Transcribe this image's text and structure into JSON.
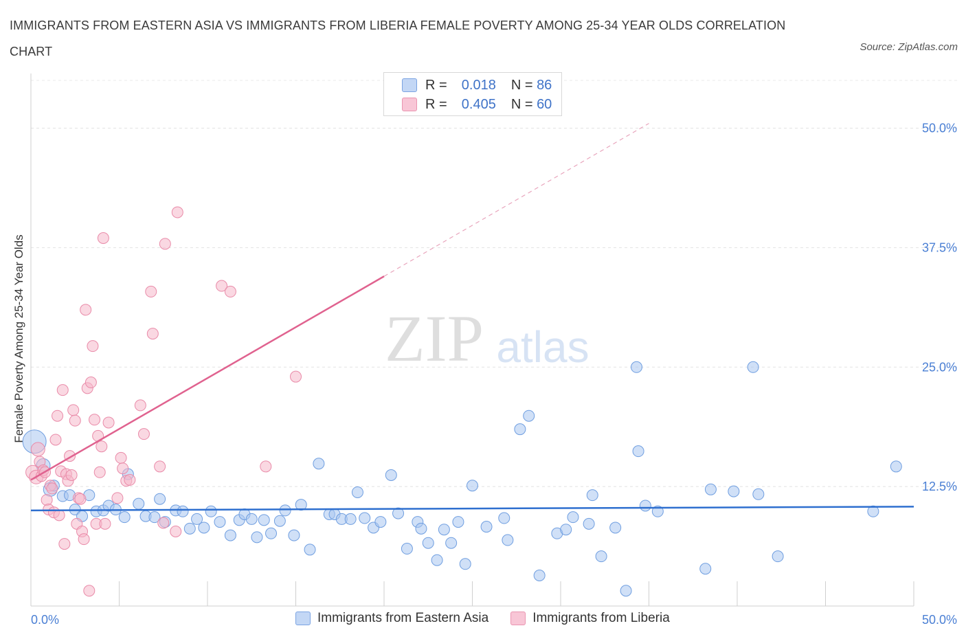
{
  "title": "IMMIGRANTS FROM EASTERN ASIA VS IMMIGRANTS FROM LIBERIA FEMALE POVERTY AMONG 25-34 YEAR OLDS CORRELATION CHART",
  "source": "Source: ZipAtlas.com",
  "watermark": {
    "zip": "ZIP",
    "atlas": "atlas"
  },
  "colors": {
    "blue_fill": "#a9c6f0",
    "blue_stroke": "#6f9ee0",
    "blue_line": "#2e6fcf",
    "pink_fill": "#f5b8cb",
    "pink_stroke": "#e98aa8",
    "pink_line": "#e0628f",
    "tick_text": "#4a7fd4"
  },
  "legend": {
    "rows": [
      {
        "r_label": "R =",
        "r_value": "0.018",
        "n_label": "N =",
        "n_value": "86"
      },
      {
        "r_label": "R =",
        "r_value": "0.405",
        "n_label": "N =",
        "n_value": "60"
      }
    ]
  },
  "chart_data": {
    "type": "scatter",
    "title": "IMMIGRANTS FROM EASTERN ASIA VS IMMIGRANTS FROM LIBERIA FEMALE POVERTY AMONG 25-34 YEAR OLDS CORRELATION CHART",
    "xlabel": "",
    "ylabel": "Female Poverty Among 25-34 Year Olds",
    "xlim": [
      0,
      50
    ],
    "ylim": [
      0,
      55
    ],
    "x_tick_labels": [
      "0.0%",
      "50.0%"
    ],
    "y_ticks": [
      12.5,
      25.0,
      37.5,
      50.0
    ],
    "y_tick_labels": [
      "12.5%",
      "25.0%",
      "37.5%",
      "50.0%"
    ],
    "grid": true,
    "legend_position": "top-center",
    "series": [
      {
        "name": "Immigrants from Eastern Asia",
        "r": 0.018,
        "n": 86,
        "trend": {
          "x1": 0,
          "y1": 10.0,
          "x2": 50,
          "y2": 10.4
        },
        "points": [
          [
            0.2,
            17.2
          ],
          [
            0.7,
            14.7
          ],
          [
            1.1,
            12.2
          ],
          [
            1.3,
            12.6
          ],
          [
            1.8,
            11.5
          ],
          [
            2.2,
            11.6
          ],
          [
            2.5,
            10.1
          ],
          [
            2.9,
            9.4
          ],
          [
            3.3,
            11.6
          ],
          [
            3.7,
            9.9
          ],
          [
            4.1,
            10.0
          ],
          [
            4.4,
            10.5
          ],
          [
            4.8,
            10.1
          ],
          [
            5.3,
            9.3
          ],
          [
            5.5,
            13.8
          ],
          [
            6.1,
            10.7
          ],
          [
            6.5,
            9.4
          ],
          [
            7.0,
            9.3
          ],
          [
            7.3,
            11.2
          ],
          [
            7.6,
            8.8
          ],
          [
            8.2,
            10.0
          ],
          [
            8.6,
            9.9
          ],
          [
            9.0,
            8.1
          ],
          [
            9.4,
            9.1
          ],
          [
            9.8,
            8.2
          ],
          [
            10.2,
            9.9
          ],
          [
            10.7,
            8.8
          ],
          [
            11.3,
            7.4
          ],
          [
            11.8,
            9.0
          ],
          [
            12.1,
            9.6
          ],
          [
            12.5,
            9.1
          ],
          [
            12.8,
            7.2
          ],
          [
            13.2,
            9.0
          ],
          [
            13.6,
            7.6
          ],
          [
            14.1,
            8.9
          ],
          [
            14.4,
            10.0
          ],
          [
            14.9,
            7.4
          ],
          [
            15.3,
            10.6
          ],
          [
            15.8,
            5.9
          ],
          [
            16.3,
            14.9
          ],
          [
            16.9,
            9.6
          ],
          [
            17.2,
            9.6
          ],
          [
            17.6,
            9.1
          ],
          [
            18.1,
            9.1
          ],
          [
            18.5,
            11.9
          ],
          [
            18.9,
            9.2
          ],
          [
            19.4,
            8.2
          ],
          [
            19.8,
            8.8
          ],
          [
            20.4,
            13.7
          ],
          [
            20.8,
            9.7
          ],
          [
            21.3,
            6.0
          ],
          [
            21.9,
            8.8
          ],
          [
            22.1,
            8.1
          ],
          [
            22.5,
            6.6
          ],
          [
            23.0,
            4.8
          ],
          [
            23.4,
            8.0
          ],
          [
            23.8,
            6.6
          ],
          [
            24.2,
            8.8
          ],
          [
            24.6,
            4.4
          ],
          [
            25.0,
            12.6
          ],
          [
            25.8,
            8.3
          ],
          [
            26.8,
            9.2
          ],
          [
            27.0,
            6.9
          ],
          [
            27.7,
            18.5
          ],
          [
            28.2,
            19.9
          ],
          [
            28.8,
            3.2
          ],
          [
            29.8,
            7.6
          ],
          [
            30.3,
            8.0
          ],
          [
            30.7,
            9.3
          ],
          [
            31.6,
            8.6
          ],
          [
            31.8,
            11.6
          ],
          [
            32.3,
            5.2
          ],
          [
            33.1,
            8.2
          ],
          [
            33.7,
            1.6
          ],
          [
            34.3,
            25.0
          ],
          [
            34.4,
            16.2
          ],
          [
            34.8,
            10.5
          ],
          [
            35.5,
            9.9
          ],
          [
            38.2,
            3.9
          ],
          [
            38.5,
            12.2
          ],
          [
            39.8,
            12.0
          ],
          [
            40.9,
            25.0
          ],
          [
            41.2,
            11.7
          ],
          [
            42.3,
            5.2
          ],
          [
            47.7,
            9.9
          ],
          [
            49.0,
            14.6
          ]
        ]
      },
      {
        "name": "Immigrants from Liberia",
        "r": 0.405,
        "n": 60,
        "trend": {
          "x1": 0,
          "y1": 13.2,
          "x2": 20,
          "y2": 34.5,
          "dash_x2": 35,
          "dash_y2": 50.5
        },
        "points": [
          [
            0.1,
            14.0
          ],
          [
            0.3,
            13.5
          ],
          [
            0.4,
            16.4
          ],
          [
            0.5,
            15.1
          ],
          [
            0.6,
            13.6
          ],
          [
            0.7,
            14.2
          ],
          [
            0.8,
            14.0
          ],
          [
            0.9,
            11.1
          ],
          [
            1.0,
            10.1
          ],
          [
            1.1,
            12.6
          ],
          [
            1.2,
            12.3
          ],
          [
            1.3,
            9.8
          ],
          [
            1.4,
            17.4
          ],
          [
            1.5,
            19.9
          ],
          [
            1.6,
            9.5
          ],
          [
            1.7,
            14.1
          ],
          [
            1.8,
            22.6
          ],
          [
            1.9,
            6.5
          ],
          [
            2.0,
            13.8
          ],
          [
            2.1,
            13.1
          ],
          [
            2.2,
            15.7
          ],
          [
            2.3,
            13.7
          ],
          [
            2.4,
            20.5
          ],
          [
            2.5,
            19.4
          ],
          [
            2.6,
            8.6
          ],
          [
            2.7,
            11.3
          ],
          [
            2.8,
            11.2
          ],
          [
            2.9,
            7.8
          ],
          [
            3.0,
            7.0
          ],
          [
            3.1,
            31.0
          ],
          [
            3.2,
            22.8
          ],
          [
            3.3,
            1.6
          ],
          [
            3.4,
            23.4
          ],
          [
            3.5,
            27.2
          ],
          [
            3.6,
            19.5
          ],
          [
            3.7,
            8.6
          ],
          [
            3.8,
            17.8
          ],
          [
            3.9,
            14.0
          ],
          [
            4.0,
            16.7
          ],
          [
            4.1,
            38.5
          ],
          [
            4.2,
            8.6
          ],
          [
            4.4,
            19.2
          ],
          [
            4.9,
            11.3
          ],
          [
            5.1,
            15.5
          ],
          [
            5.2,
            14.4
          ],
          [
            5.4,
            13.1
          ],
          [
            5.6,
            13.2
          ],
          [
            6.2,
            21.0
          ],
          [
            6.4,
            18.0
          ],
          [
            6.8,
            32.9
          ],
          [
            6.9,
            28.5
          ],
          [
            7.3,
            14.6
          ],
          [
            7.5,
            8.7
          ],
          [
            7.6,
            37.9
          ],
          [
            8.2,
            7.8
          ],
          [
            8.3,
            41.2
          ],
          [
            10.8,
            33.5
          ],
          [
            11.3,
            32.9
          ],
          [
            13.3,
            14.6
          ],
          [
            15.0,
            24.0
          ]
        ]
      }
    ]
  },
  "x_axis": {
    "left_label": "0.0%",
    "right_label": "50.0%"
  },
  "bottom_legend": [
    "Immigrants from Eastern Asia",
    "Immigrants from Liberia"
  ]
}
